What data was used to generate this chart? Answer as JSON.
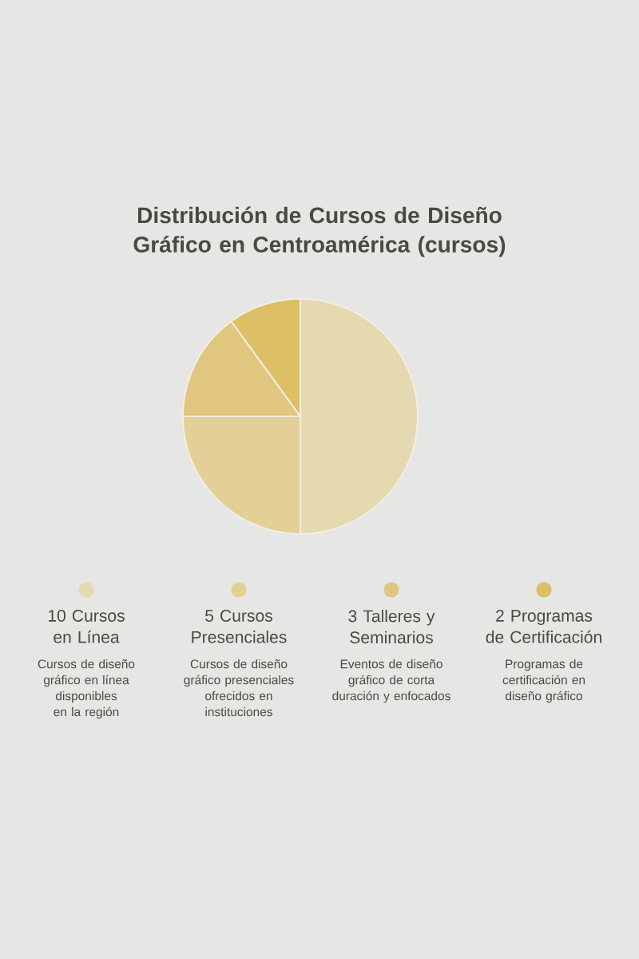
{
  "chart_data": {
    "type": "pie",
    "title": "Distribución de Cursos de Diseño Gráfico en Centroamérica (cursos)",
    "categories": [
      "10 Cursos en Línea",
      "5 Cursos Presenciales",
      "3 Talleres y Seminarios",
      "2 Programas de Certificación"
    ],
    "values": [
      10,
      5,
      3,
      2
    ],
    "colors": [
      "#e5d9b0",
      "#e2d097",
      "#e0c67e",
      "#ddbf65"
    ],
    "legend": "bottom",
    "annotations": [
      "Cursos de diseño gráfico en línea disponibles en la región",
      "Cursos de diseño gráfico presenciales ofrecidos en instituciones",
      "Eventos de diseño gráfico de corta duración y enfocados",
      "Programas de certificación en diseño gráfico"
    ]
  }
}
